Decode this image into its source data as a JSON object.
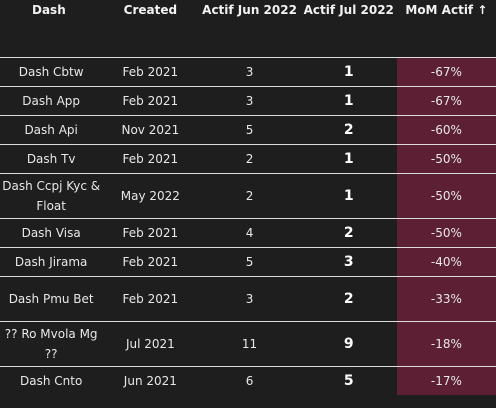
{
  "headers": {
    "dash": "Dash",
    "created": "Created",
    "actif_jun": "Actif Jun 2022",
    "actif_jul": "Actif Jul 2022",
    "mom": "MoM Actif ↑"
  },
  "rows": [
    {
      "dash": "Dash Cbtw",
      "created": "Feb 2021",
      "jun": "3",
      "jul": "1",
      "mom": "-67%"
    },
    {
      "dash": "Dash App",
      "created": "Feb 2021",
      "jun": "3",
      "jul": "1",
      "mom": "-67%"
    },
    {
      "dash": "Dash Api",
      "created": "Nov 2021",
      "jun": "5",
      "jul": "2",
      "mom": "-60%"
    },
    {
      "dash": "Dash Tv",
      "created": "Feb 2021",
      "jun": "2",
      "jul": "1",
      "mom": "-50%"
    },
    {
      "dash": "Dash Ccpj Kyc & Float",
      "created": "May 2022",
      "jun": "2",
      "jul": "1",
      "mom": "-50%"
    },
    {
      "dash": "Dash Visa",
      "created": "Feb 2021",
      "jun": "4",
      "jul": "2",
      "mom": "-50%"
    },
    {
      "dash": "Dash Jirama",
      "created": "Feb 2021",
      "jun": "5",
      "jul": "3",
      "mom": "-40%"
    },
    {
      "dash": "Dash Pmu Bet",
      "created": "Feb 2021",
      "jun": "3",
      "jul": "2",
      "mom": "-33%"
    },
    {
      "dash": "?? Ro Mvola Mg ??",
      "created": "Jul 2021",
      "jun": "11",
      "jul": "9",
      "mom": "-18%"
    },
    {
      "dash": "Dash Cnto",
      "created": "Jun 2021",
      "jun": "6",
      "jul": "5",
      "mom": "-17%"
    }
  ],
  "colors": {
    "background": "#1e1e1e",
    "mom_highlight": "#5c1f33",
    "divider": "#dcdcdc"
  }
}
